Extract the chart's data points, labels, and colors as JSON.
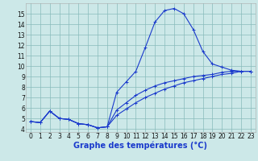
{
  "bg_color": "#cce8e8",
  "line_color": "#1a3acc",
  "grid_color": "#88bbbb",
  "xlabel": "Graphe des températures (°C)",
  "xlabel_fontsize": 7,
  "xlabel_color": "#1a3acc",
  "ytick_vals": [
    4,
    5,
    6,
    7,
    8,
    9,
    10,
    11,
    12,
    13,
    14,
    15
  ],
  "xtick_vals": [
    0,
    1,
    2,
    3,
    4,
    5,
    6,
    7,
    8,
    9,
    10,
    11,
    12,
    13,
    14,
    15,
    16,
    17,
    18,
    19,
    20,
    21,
    22,
    23
  ],
  "xlim": [
    -0.5,
    23.5
  ],
  "ylim": [
    3.7,
    16.0
  ],
  "tick_fontsize": 5.5,
  "line1_y": [
    4.7,
    4.6,
    5.7,
    5.0,
    4.9,
    4.5,
    4.4,
    4.1,
    4.2,
    7.5,
    8.5,
    9.5,
    11.8,
    14.2,
    15.3,
    15.5,
    15.0,
    13.5,
    11.4,
    10.2,
    9.9,
    9.6,
    9.5,
    9.5
  ],
  "line2_y": [
    4.7,
    4.6,
    5.7,
    5.0,
    4.9,
    4.5,
    4.4,
    4.1,
    4.2,
    5.3,
    5.9,
    6.5,
    7.0,
    7.4,
    7.8,
    8.1,
    8.4,
    8.6,
    8.8,
    9.0,
    9.2,
    9.3,
    9.5,
    9.5
  ],
  "line3_y": [
    4.7,
    4.6,
    5.7,
    5.0,
    4.9,
    4.5,
    4.4,
    4.1,
    4.2,
    5.8,
    6.5,
    7.2,
    7.7,
    8.1,
    8.4,
    8.6,
    8.8,
    9.0,
    9.1,
    9.2,
    9.4,
    9.5,
    9.5,
    9.5
  ],
  "marker_size": 2.5,
  "marker_ew": 0.7,
  "line_width": 0.8
}
